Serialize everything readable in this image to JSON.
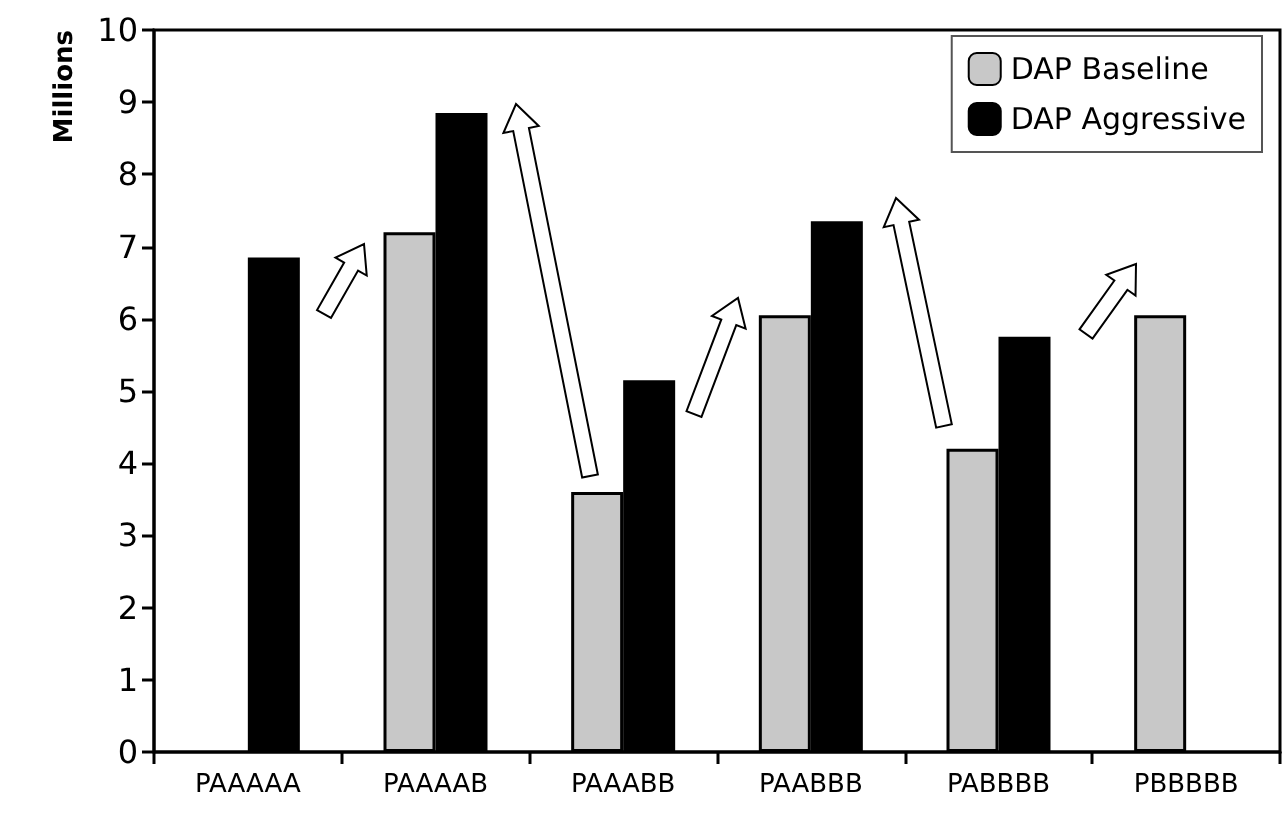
{
  "chart_data": {
    "type": "bar",
    "ylabel": "Millions",
    "categories": [
      "PAAAAA",
      "PAAAAB",
      "PAAABB",
      "PAABBB",
      "PABBBB",
      "PBBBBB"
    ],
    "series": [
      {
        "name": "DAP Baseline",
        "color": "#c8c8c8",
        "values": [
          null,
          7.2,
          3.6,
          6.05,
          4.2,
          6.05
        ]
      },
      {
        "name": "DAP Aggressive",
        "color": "#000000",
        "values": [
          6.85,
          8.85,
          5.15,
          7.35,
          5.75,
          null
        ]
      }
    ],
    "ylim": [
      0,
      10
    ],
    "yticks": [
      0,
      1,
      2,
      3,
      4,
      5,
      6,
      7,
      8,
      9,
      10
    ],
    "grid": false,
    "legend": "top right"
  }
}
